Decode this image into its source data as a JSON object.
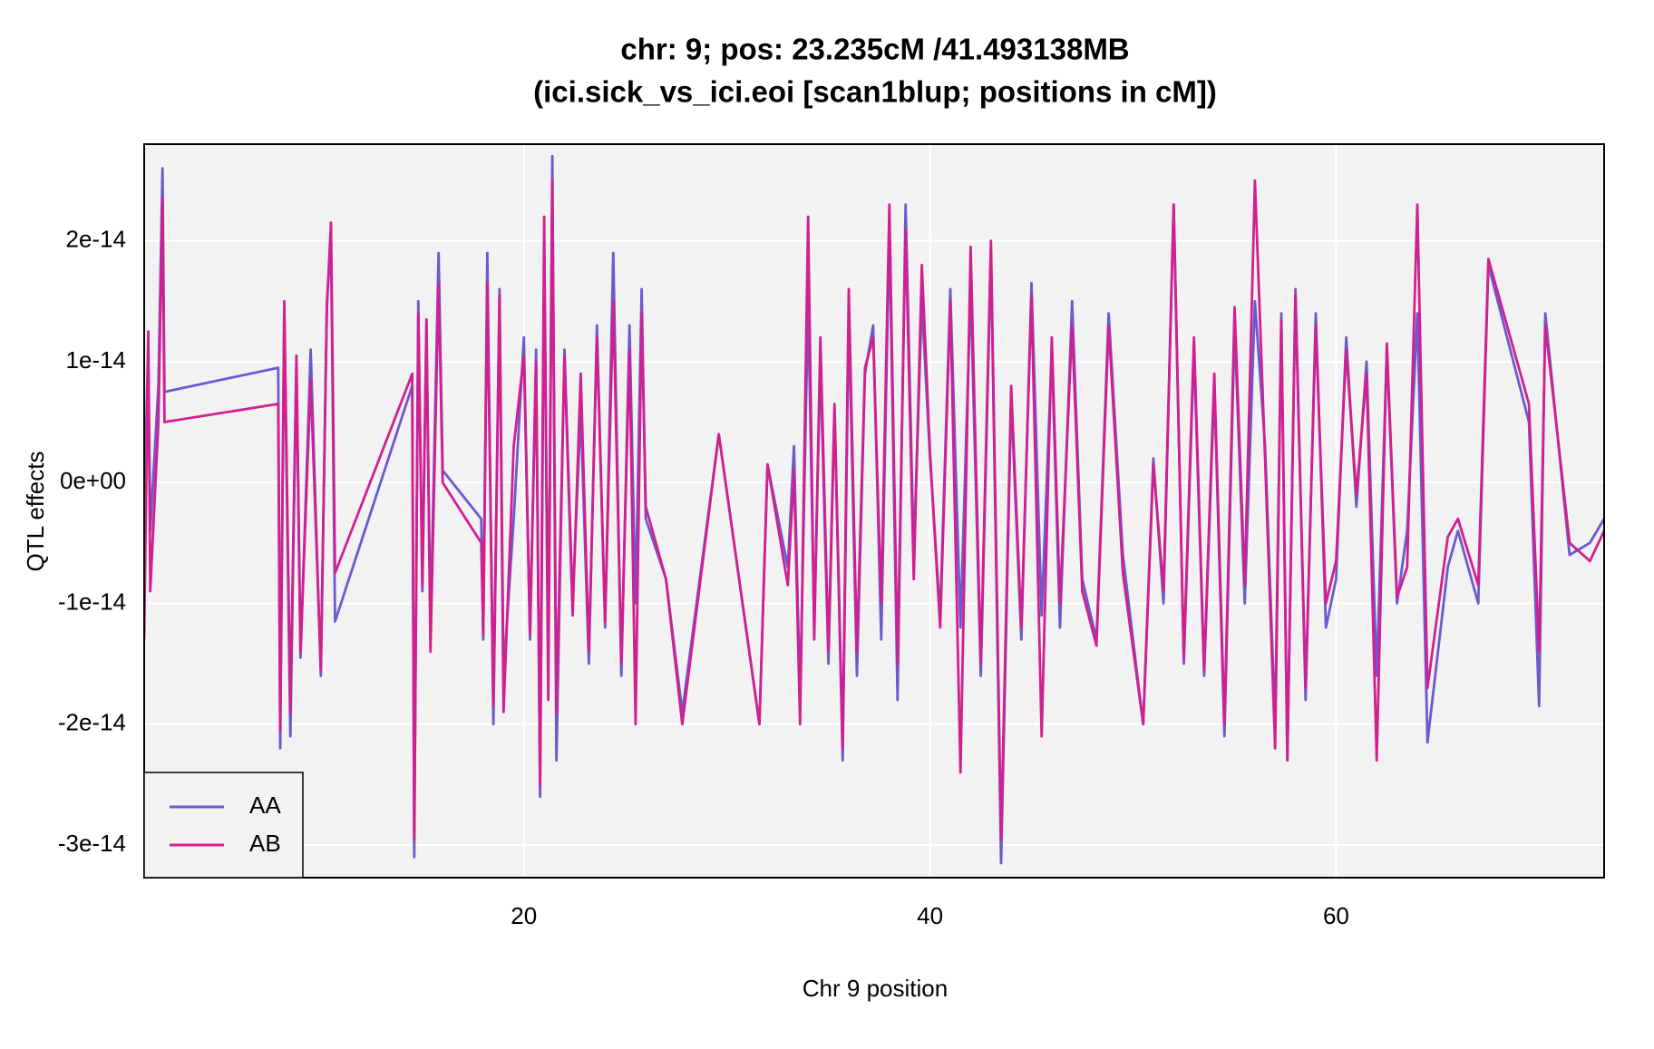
{
  "chart_data": {
    "type": "line",
    "title": "chr: 9; pos: 23.235cM /41.493138MB",
    "subtitle": "(ici.sick_vs_ici.eoi [scan1blup; positions in cM])",
    "x_label": "Chr 9 position",
    "y_label": "QTL effects",
    "x": [
      1.3,
      1.5,
      1.6,
      2.0,
      2.2,
      2.3,
      7.9,
      8.0,
      8.2,
      8.5,
      8.8,
      9.0,
      9.5,
      10.0,
      10.3,
      10.5,
      10.7,
      14.5,
      14.6,
      14.8,
      15.0,
      15.2,
      15.4,
      15.8,
      16.0,
      17.9,
      18.0,
      18.2,
      18.5,
      18.8,
      19.0,
      19.5,
      20.0,
      20.3,
      20.6,
      20.8,
      21.0,
      21.2,
      21.4,
      21.6,
      22.0,
      22.4,
      22.8,
      23.2,
      23.6,
      24.0,
      24.4,
      24.8,
      25.2,
      25.5,
      25.8,
      26.0,
      27.0,
      27.8,
      29.6,
      31.6,
      32.0,
      33.0,
      33.3,
      33.6,
      34.0,
      34.3,
      34.6,
      35.0,
      35.3,
      35.7,
      36.0,
      36.4,
      36.8,
      37.2,
      37.6,
      38.0,
      38.4,
      38.8,
      39.2,
      39.6,
      40.0,
      40.5,
      41.0,
      41.5,
      42.0,
      42.5,
      43.0,
      43.5,
      44.0,
      44.5,
      45.0,
      45.5,
      46.0,
      46.4,
      47.0,
      47.5,
      48.2,
      48.8,
      49.5,
      50.5,
      51.0,
      51.5,
      52.0,
      52.5,
      53.0,
      53.5,
      54.0,
      54.5,
      55.0,
      55.5,
      56.0,
      56.5,
      57.0,
      57.3,
      57.6,
      58.0,
      58.5,
      59.0,
      59.5,
      60.0,
      60.5,
      61.0,
      61.5,
      62.0,
      62.5,
      63.0,
      63.5,
      64.0,
      64.5,
      65.5,
      66.0,
      67.0,
      67.5,
      69.5,
      70.0,
      70.3,
      71.5,
      72.5,
      73.2
    ],
    "series": [
      {
        "name": "AA",
        "color": "#6A5ACD",
        "values": [
          -3e-15,
          1.2e-14,
          -4e-15,
          8e-15,
          2.6e-14,
          7.5e-15,
          9.5e-15,
          -2.2e-14,
          1.4e-14,
          -2.1e-14,
          1e-14,
          -1.45e-14,
          1.1e-14,
          -1.6e-14,
          1.5e-14,
          2e-14,
          -1.15e-14,
          8e-15,
          -3.1e-14,
          1.5e-14,
          -9e-15,
          1.3e-14,
          -1.2e-14,
          1.9e-14,
          1e-15,
          -3e-15,
          -1.3e-14,
          1.9e-14,
          -2e-14,
          1.6e-14,
          -1.6e-14,
          -3e-15,
          1.2e-14,
          -1.3e-14,
          1.1e-14,
          -2.6e-14,
          1.9e-14,
          -1.5e-14,
          2.7e-14,
          -2.3e-14,
          1.1e-14,
          -1e-14,
          6e-15,
          -1.5e-14,
          1.3e-14,
          -1.2e-14,
          1.9e-14,
          -1.6e-14,
          1.3e-14,
          -1e-14,
          1.6e-14,
          -3e-15,
          -8e-15,
          -1.9e-14,
          4e-15,
          -2e-14,
          1.5e-15,
          -7e-15,
          3e-15,
          -1.8e-14,
          1.5e-14,
          -1.2e-14,
          1e-14,
          -1.5e-14,
          6e-15,
          -2.3e-14,
          1.4e-14,
          -1.6e-14,
          9e-15,
          1.3e-14,
          -1.3e-14,
          2.1e-14,
          -1.8e-14,
          2.3e-14,
          -6e-15,
          1.5e-14,
          2e-15,
          -1.1e-14,
          1.6e-14,
          -1.2e-14,
          1.6e-14,
          -1.6e-14,
          1.9e-14,
          -3.15e-14,
          7e-15,
          -1.3e-14,
          1.65e-14,
          -1.1e-14,
          1.1e-14,
          -1.2e-14,
          1.5e-14,
          -8e-15,
          -1.3e-14,
          1.4e-14,
          -6e-15,
          -2e-14,
          2e-15,
          -1e-14,
          2.3e-14,
          -1.5e-14,
          1.1e-14,
          -1.6e-14,
          8e-15,
          -2.1e-14,
          1.3e-14,
          -1e-14,
          1.5e-14,
          3e-15,
          -2e-14,
          1.4e-14,
          -2.3e-14,
          1.6e-14,
          -1.8e-14,
          1.4e-14,
          -1.2e-14,
          -8e-15,
          1.2e-14,
          -2e-15,
          1e-14,
          -1.6e-14,
          1.1e-14,
          -1e-14,
          -4e-15,
          1.4e-14,
          -2.15e-14,
          -7e-15,
          -4e-15,
          -1e-14,
          1.8e-14,
          5e-15,
          -1.85e-14,
          1.4e-14,
          -6e-15,
          -5e-15,
          -3e-15
        ]
      },
      {
        "name": "AB",
        "color": "#D02090",
        "values": [
          -1.3e-14,
          1.25e-14,
          -9e-15,
          5e-15,
          2.35e-14,
          5e-15,
          6.5e-15,
          -2.05e-14,
          1.5e-14,
          -1.9e-14,
          1.05e-14,
          -1.4e-14,
          8.5e-15,
          -1.55e-14,
          1.45e-14,
          2.15e-14,
          -7.5e-15,
          9e-15,
          -2.95e-14,
          1.4e-14,
          -8.5e-15,
          1.35e-14,
          -1.4e-14,
          1.65e-14,
          0.0,
          -5e-15,
          -1.25e-14,
          1.65e-14,
          -1.85e-14,
          1.55e-14,
          -1.9e-14,
          3e-15,
          1.05e-14,
          -1.25e-14,
          1e-14,
          -2.5e-14,
          2.2e-14,
          -1.8e-14,
          2.5e-14,
          -1.9e-14,
          1.05e-14,
          -1.1e-14,
          9e-15,
          -1.4e-14,
          1.2e-14,
          -1.15e-14,
          1.5e-14,
          -1.5e-14,
          1.1e-14,
          -2e-14,
          1.4e-14,
          -2e-15,
          -8e-15,
          -2e-14,
          4e-15,
          -2e-14,
          1.5e-15,
          -8.5e-15,
          1e-15,
          -2e-14,
          2.2e-14,
          -1.3e-14,
          1.2e-14,
          -1.4e-14,
          6.5e-15,
          -2.2e-14,
          1.6e-14,
          -1.4e-14,
          9.5e-15,
          1.2e-14,
          -1e-14,
          2.3e-14,
          -1.5e-14,
          2.1e-14,
          -8e-15,
          1.8e-14,
          2.5e-15,
          -1.2e-14,
          1.5e-14,
          -2.4e-14,
          1.95e-14,
          -1.5e-14,
          2e-14,
          -2.95e-14,
          8e-15,
          -1.2e-14,
          1.55e-14,
          -2.1e-14,
          1.2e-14,
          -1e-14,
          1.3e-14,
          -9e-15,
          -1.35e-14,
          1.3e-14,
          -7.5e-15,
          -2e-14,
          1.5e-15,
          -9e-15,
          2.3e-14,
          -1.45e-14,
          1.2e-14,
          -1.55e-14,
          9e-15,
          -2e-14,
          1.45e-14,
          -8.5e-15,
          2.5e-14,
          2e-15,
          -2.2e-14,
          1.35e-14,
          -2.3e-14,
          1.55e-14,
          -1.7e-14,
          1.3e-14,
          -1e-14,
          -6.5e-15,
          1.1e-14,
          -1e-15,
          9e-15,
          -2.3e-14,
          1.15e-14,
          -9.5e-15,
          -7e-15,
          2.3e-14,
          -1.7e-14,
          -4.5e-15,
          -3e-15,
          -8.5e-15,
          1.85e-14,
          6.5e-15,
          -1.4e-14,
          1.3e-14,
          -5e-15,
          -6.5e-15,
          -4e-15
        ]
      }
    ],
    "xlim": [
      1.3,
      73.2
    ],
    "xticks": [
      20,
      40,
      60
    ],
    "ylim": [
      -3.27e-14,
      2.8e-14
    ],
    "yticks": [
      {
        "value": -3e-14,
        "label": "-3e-14"
      },
      {
        "value": -2e-14,
        "label": "-2e-14"
      },
      {
        "value": -1e-14,
        "label": "-1e-14"
      },
      {
        "value": 0,
        "label": "0e+00"
      },
      {
        "value": 1e-14,
        "label": "1e-14"
      },
      {
        "value": 2e-14,
        "label": "2e-14"
      }
    ],
    "grid": true,
    "legend": "bottomleft"
  }
}
